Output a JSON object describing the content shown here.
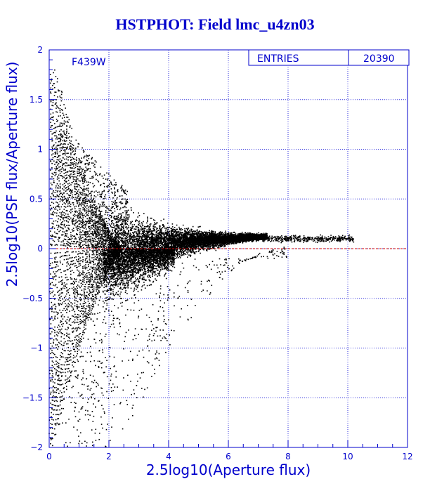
{
  "title": "HSTPHOT: Field lmc_u4zn03",
  "filter_label": "F439W",
  "stats": {
    "entries_label": "ENTRIES",
    "entries_value": "20390"
  },
  "colors": {
    "axis": "#0000cc",
    "grid": "#3333dd",
    "points": "#000000",
    "zero_line": "#cc0000"
  },
  "chart_data": {
    "type": "scatter",
    "title": "HSTPHOT: Field lmc_u4zn03",
    "xlabel": "2.5log10(Aperture flux)",
    "ylabel": "2.5log10(PSF flux/Aperture flux)",
    "xlim": [
      0,
      12
    ],
    "ylim": [
      -2,
      2
    ],
    "xticks": [
      0,
      2,
      4,
      6,
      8,
      10,
      12
    ],
    "yticks": [
      -2,
      -1.5,
      -1,
      -0.5,
      0,
      0.5,
      1,
      1.5,
      2
    ],
    "xtick_labels": [
      "0",
      "2",
      "4",
      "6",
      "8",
      "10",
      "12"
    ],
    "ytick_labels": [
      "−2",
      "−1.5",
      "−1",
      "−0.5",
      "0",
      "0.5",
      "1",
      "1.5",
      "2"
    ],
    "grid": true,
    "reference_line_y": 0,
    "annotation": "F439W",
    "entries": 20390,
    "envelope_description": "points fan out from a wide spread near x=0 to a narrow band near y=0.1 at x=6-10",
    "envelope_samples": [
      {
        "x": 0.2,
        "y_low": -2.0,
        "y_high": 1.8
      },
      {
        "x": 1.0,
        "y_low": -2.0,
        "y_high": 1.05
      },
      {
        "x": 2.0,
        "y_low": -2.0,
        "y_high": 0.75
      },
      {
        "x": 3.0,
        "y_low": -1.6,
        "y_high": 0.5
      },
      {
        "x": 4.0,
        "y_low": -1.0,
        "y_high": 0.35
      },
      {
        "x": 5.0,
        "y_low": -0.6,
        "y_high": 0.25
      },
      {
        "x": 6.0,
        "y_low": -0.25,
        "y_high": 0.2
      },
      {
        "x": 7.0,
        "y_low": -0.05,
        "y_high": 0.17
      },
      {
        "x": 8.0,
        "y_low": 0.03,
        "y_high": 0.15
      },
      {
        "x": 10.0,
        "y_low": 0.07,
        "y_high": 0.13
      }
    ]
  }
}
